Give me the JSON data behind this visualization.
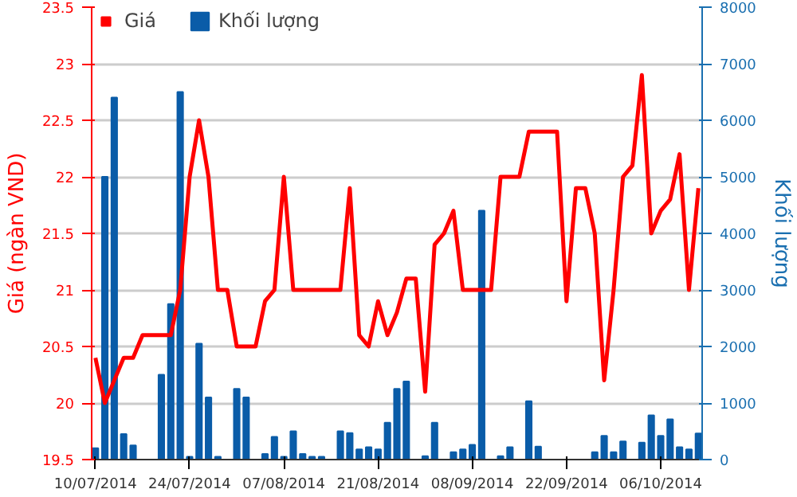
{
  "chart_data": {
    "type": "line",
    "categories": [
      "10/07/2014",
      null,
      null,
      null,
      null,
      null,
      null,
      null,
      null,
      null,
      "24/07/2014",
      null,
      null,
      null,
      null,
      null,
      null,
      null,
      null,
      null,
      "07/08/2014",
      null,
      null,
      null,
      null,
      null,
      null,
      null,
      null,
      null,
      "21/08/2014",
      null,
      null,
      null,
      null,
      null,
      null,
      null,
      null,
      null,
      "08/09/2014",
      null,
      null,
      null,
      null,
      null,
      null,
      null,
      null,
      null,
      "22/09/2014",
      null,
      null,
      null,
      null,
      null,
      null,
      null,
      null,
      null,
      "06/10/2014",
      null,
      null,
      null,
      null
    ],
    "ylabel": "Giá (ngàn VND)",
    "y2label": "Khối lượng",
    "ylim": [
      19.5,
      23.5
    ],
    "yticks": [
      19.5,
      20,
      20.5,
      21,
      21.5,
      22,
      22.5,
      23,
      23.5
    ],
    "y2lim": [
      0,
      8000
    ],
    "y2ticks": [
      0,
      1000,
      2000,
      3000,
      4000,
      5000,
      6000,
      7000,
      8000
    ],
    "grid": "y",
    "legend": "top left",
    "line_style": "solid",
    "series": [
      {
        "name": "Giá",
        "color": "#ff0000",
        "values": [
          20.4,
          20.0,
          20.2,
          20.4,
          20.4,
          20.6,
          20.6,
          20.6,
          20.6,
          21.0,
          22.0,
          22.5,
          22.0,
          21.0,
          21.0,
          20.5,
          20.5,
          20.5,
          20.9,
          21.0,
          22.0,
          21.0,
          21.0,
          21.0,
          21.0,
          21.0,
          21.0,
          21.9,
          20.6,
          20.5,
          20.9,
          20.6,
          20.8,
          21.1,
          21.1,
          20.1,
          21.4,
          21.5,
          21.7,
          21.0,
          21.0,
          21.0,
          21.0,
          22.0,
          22.0,
          22.0,
          22.4,
          22.4,
          22.4,
          22.4,
          20.9,
          21.9,
          21.9,
          21.5,
          20.2,
          21.0,
          22.0,
          22.1,
          22.9,
          21.5,
          21.7,
          21.8,
          22.2,
          21.0,
          21.9
        ]
      },
      {
        "name": "Khối lượng",
        "type": "bar",
        "axis": "y2",
        "color": "#0a5ca8",
        "values": [
          200,
          5000,
          6400,
          450,
          250,
          null,
          null,
          1500,
          2750,
          6500,
          50,
          2050,
          1100,
          50,
          null,
          1250,
          1100,
          null,
          100,
          400,
          50,
          500,
          100,
          50,
          50,
          null,
          500,
          470,
          180,
          220,
          180,
          650,
          1250,
          1380,
          null,
          60,
          650,
          null,
          130,
          180,
          260,
          4400,
          null,
          60,
          220,
          null,
          1030,
          230,
          null,
          null,
          null,
          null,
          null,
          130,
          420,
          130,
          320,
          null,
          300,
          780,
          420,
          710,
          220,
          180,
          460
        ]
      }
    ]
  }
}
